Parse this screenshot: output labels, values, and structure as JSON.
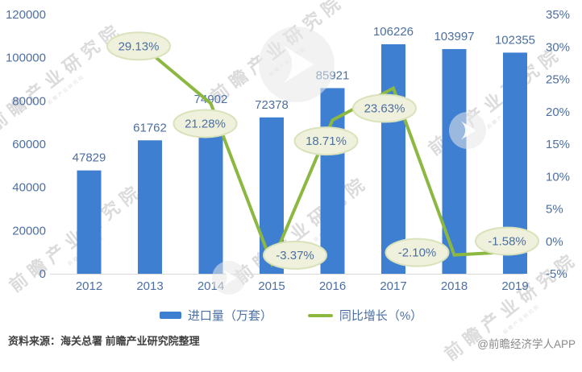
{
  "watermark": {
    "text": "前瞻产业研究院"
  },
  "footer": {
    "source": "资料来源：海关总署 前瞻产业研究院整理",
    "credit": "@前瞻经济学人APP"
  },
  "chart_data": {
    "type": "bar+line",
    "categories": [
      "2012",
      "2013",
      "2014",
      "2015",
      "2016",
      "2017",
      "2018",
      "2019"
    ],
    "series": [
      {
        "name": "进口量（万套）",
        "type": "bar",
        "axis": "left",
        "values": [
          47829,
          61762,
          74902,
          72378,
          85921,
          106226,
          103997,
          102355
        ],
        "labels": [
          "47829",
          "61762",
          "74902",
          "72378",
          "85921",
          "106226",
          "103997",
          "102355"
        ]
      },
      {
        "name": "同比增长（%）",
        "type": "line",
        "axis": "right",
        "values": [
          null,
          29.13,
          21.28,
          -3.37,
          18.71,
          23.63,
          -2.1,
          -1.58
        ],
        "labels": [
          "",
          "29.13%",
          "21.28%",
          "-3.37%",
          "18.71%",
          "23.63%",
          "-2.10%",
          "-1.58%"
        ]
      }
    ],
    "left_axis": {
      "min": 0,
      "max": 120000,
      "ticks": [
        "120000",
        "100000",
        "80000",
        "60000",
        "40000",
        "20000",
        "0"
      ]
    },
    "right_axis": {
      "min": -5,
      "max": 35,
      "ticks": [
        "35%",
        "30%",
        "25%",
        "20%",
        "15%",
        "10%",
        "5%",
        "0%",
        "-5%"
      ]
    },
    "legend_position": "bottom",
    "grid": false,
    "colors": {
      "bar": "#3f7fd2",
      "line": "#8cb842",
      "bubble_fill": "#eff1dc",
      "bubble_stroke": "#d9e2ba",
      "label": "#4d6fa1",
      "axis_line": "#d9d9d9"
    }
  }
}
